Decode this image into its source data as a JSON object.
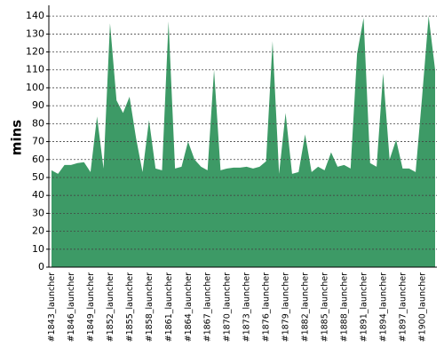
{
  "chart_data": {
    "type": "area",
    "y_label": "mins",
    "color": "#3d9a66",
    "categories": [
      "#1843_launcher",
      null,
      null,
      "#1846_launcher",
      null,
      null,
      "#1849_launcher",
      null,
      null,
      "#1852_launcher",
      null,
      null,
      "#1855_launcher",
      null,
      null,
      "#1858_launcher",
      null,
      null,
      "#1861_launcher",
      null,
      null,
      "#1864_launcher",
      null,
      null,
      "#1867_launcher",
      null,
      null,
      "#1870_launcher",
      null,
      null,
      "#1873_launcher",
      null,
      null,
      "#1876_launcher",
      null,
      null,
      "#1879_launcher",
      null,
      null,
      "#1882_launcher",
      null,
      null,
      "#1885_launcher",
      null,
      null,
      "#1888_launcher",
      null,
      null,
      "#1891_launcher",
      null,
      null,
      "#1894_launcher",
      null,
      null,
      "#1897_launcher",
      null,
      null,
      "#1900_launcher",
      null,
      null
    ],
    "values": [
      54,
      52,
      57,
      57,
      58,
      58.5,
      53,
      84,
      55,
      136,
      93,
      86,
      95,
      72,
      53,
      82,
      55,
      54,
      137,
      55,
      56,
      70,
      60,
      56,
      54,
      110,
      54,
      55,
      55.5,
      55.5,
      56,
      55,
      56,
      59,
      126,
      52,
      86,
      52,
      53,
      74,
      53,
      56,
      54,
      64,
      56,
      57,
      55,
      119,
      139,
      58,
      56,
      108,
      60,
      71,
      55,
      55,
      53,
      95,
      140,
      110
    ],
    "ylim": [
      0,
      146
    ],
    "yticks": [
      0,
      10,
      20,
      30,
      40,
      50,
      60,
      70,
      80,
      90,
      100,
      110,
      120,
      130,
      140
    ],
    "grid": true
  }
}
